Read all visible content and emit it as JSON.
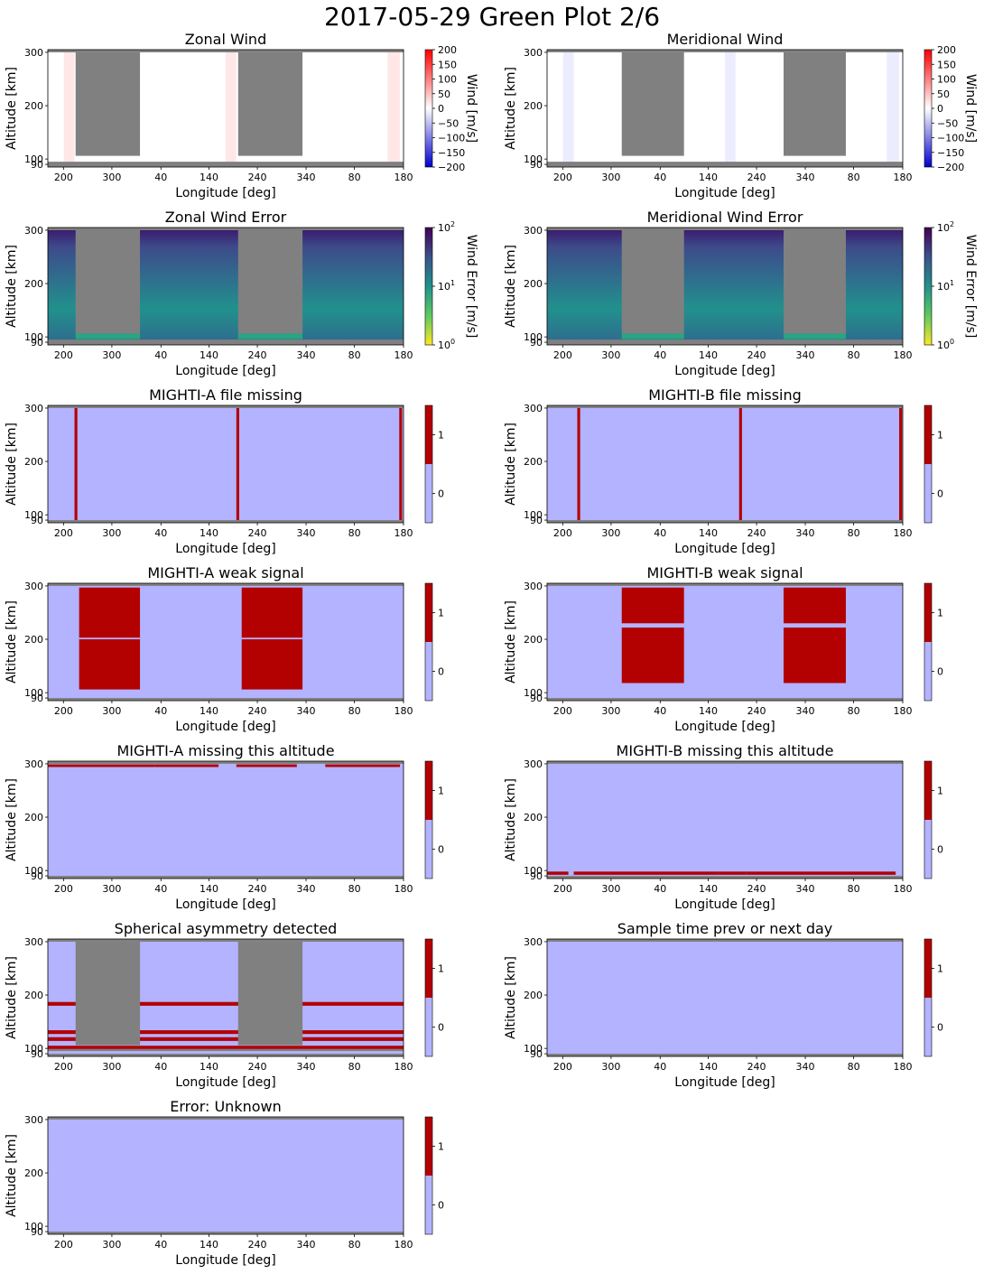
{
  "figure_title": "2017-05-29 Green Plot 2/6",
  "common": {
    "xlabel": "Longitude [deg]",
    "ylabel": "Altitude [km]",
    "x_tick_labels": [
      "200",
      "300",
      "40",
      "140",
      "240",
      "340",
      "80",
      "180"
    ],
    "y_ticks": [
      300,
      200,
      100,
      90
    ],
    "ylim": [
      85,
      305
    ]
  },
  "colors": {
    "axes_gray": "#808080",
    "flag_zero": "#b3b3ff",
    "flag_one": "#b30000",
    "wind_high": "#ff0000",
    "wind_low": "#0000cc",
    "viridis": [
      "#440154",
      "#3b528b",
      "#21918c",
      "#5ec962",
      "#fde725"
    ]
  },
  "chart_data": [
    {
      "type": "heatmap",
      "title": "Zonal Wind",
      "kind": "wind",
      "colorbar": {
        "label": "Wind [m/s]",
        "ticks": [
          "200",
          "150",
          "100",
          "50",
          "0",
          "−50",
          "−100",
          "−150",
          "−200"
        ],
        "range": [
          -200,
          200
        ]
      }
    },
    {
      "type": "heatmap",
      "title": "Meridional Wind",
      "kind": "wind",
      "colorbar": {
        "label": "Wind [m/s]",
        "ticks": [
          "200",
          "150",
          "100",
          "50",
          "0",
          "−50",
          "−100",
          "−150",
          "−200"
        ],
        "range": [
          -200,
          200
        ]
      }
    },
    {
      "type": "heatmap",
      "title": "Zonal Wind Error",
      "kind": "error",
      "colorbar": {
        "label": "Wind Error [m/s]",
        "ticks": [
          "10",
          "10",
          "10"
        ],
        "tick_exponents": [
          "2",
          "1",
          "0"
        ],
        "scale": "log",
        "range": [
          1,
          100
        ]
      }
    },
    {
      "type": "heatmap",
      "title": "Meridional Wind Error",
      "kind": "error",
      "colorbar": {
        "label": "Wind Error [m/s]",
        "ticks": [
          "10",
          "10",
          "10"
        ],
        "tick_exponents": [
          "2",
          "1",
          "0"
        ],
        "scale": "log",
        "range": [
          1,
          100
        ]
      }
    },
    {
      "type": "heatmap",
      "title": "MIGHTI-A file missing",
      "kind": "flag",
      "flag_pattern": "file_missing_a",
      "colorbar": {
        "ticks": [
          "1",
          "0"
        ]
      }
    },
    {
      "type": "heatmap",
      "title": "MIGHTI-B file missing",
      "kind": "flag",
      "flag_pattern": "file_missing_b",
      "colorbar": {
        "ticks": [
          "1",
          "0"
        ]
      }
    },
    {
      "type": "heatmap",
      "title": "MIGHTI-A weak signal",
      "kind": "flag",
      "flag_pattern": "weak_a",
      "colorbar": {
        "ticks": [
          "1",
          "0"
        ]
      }
    },
    {
      "type": "heatmap",
      "title": "MIGHTI-B weak signal",
      "kind": "flag",
      "flag_pattern": "weak_b",
      "colorbar": {
        "ticks": [
          "1",
          "0"
        ]
      }
    },
    {
      "type": "heatmap",
      "title": "MIGHTI-A missing this altitude",
      "kind": "flag",
      "flag_pattern": "missing_alt_a",
      "colorbar": {
        "ticks": [
          "1",
          "0"
        ]
      }
    },
    {
      "type": "heatmap",
      "title": "MIGHTI-B missing this altitude",
      "kind": "flag",
      "flag_pattern": "missing_alt_b",
      "colorbar": {
        "ticks": [
          "1",
          "0"
        ]
      }
    },
    {
      "type": "heatmap",
      "title": "Spherical asymmetry detected",
      "kind": "flag",
      "flag_pattern": "asymmetry",
      "colorbar": {
        "ticks": [
          "1",
          "0"
        ]
      }
    },
    {
      "type": "heatmap",
      "title": "Sample time prev or next day",
      "kind": "flag",
      "flag_pattern": "none",
      "colorbar": {
        "ticks": [
          "1",
          "0"
        ]
      }
    },
    {
      "type": "heatmap",
      "title": "Error: Unknown",
      "kind": "flag",
      "flag_pattern": "none",
      "colorbar": {
        "ticks": [
          "1",
          "0"
        ]
      }
    }
  ]
}
